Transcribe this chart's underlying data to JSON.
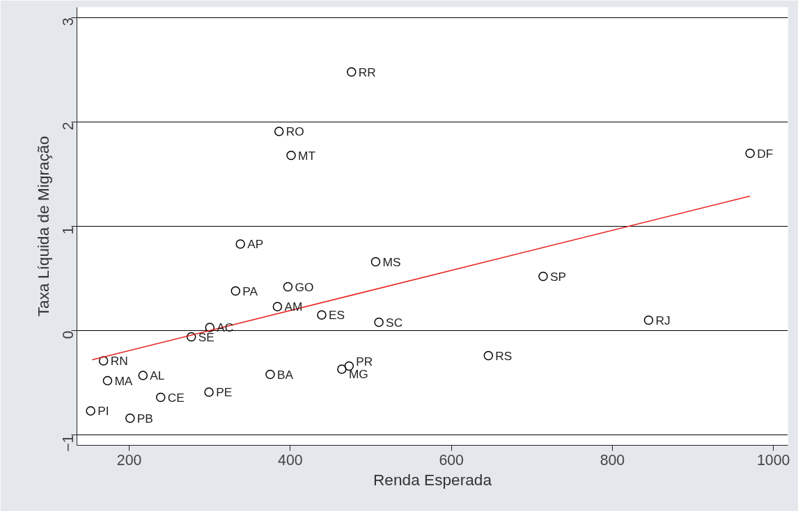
{
  "chart_data": {
    "type": "scatter",
    "xlabel": "Renda Esperada",
    "ylabel": "Taxa Líquida de Migração",
    "xlim": [
      135,
      1018
    ],
    "ylim": [
      -1.1,
      3.1
    ],
    "xticks": [
      200,
      400,
      600,
      800,
      1000
    ],
    "yticks": [
      -1,
      0,
      1,
      2,
      3
    ],
    "grid": "y",
    "marker": "circle",
    "series": [
      {
        "color": "#000000",
        "x": [
          476,
          386,
          401,
          971,
          338,
          506,
          714,
          397,
          332,
          384,
          439,
          510,
          845,
          300,
          277,
          168,
          217,
          173,
          375,
          473,
          464,
          646,
          239,
          299,
          152,
          201
        ],
        "values": [
          2.48,
          1.91,
          1.68,
          1.7,
          0.83,
          0.66,
          0.52,
          0.42,
          0.38,
          0.23,
          0.15,
          0.08,
          0.1,
          0.03,
          -0.06,
          -0.29,
          -0.43,
          -0.48,
          -0.42,
          -0.34,
          -0.37,
          -0.24,
          -0.64,
          -0.59,
          -0.77,
          -0.84
        ],
        "value_labels": [
          "RR",
          "RO",
          "MT",
          "DF",
          "AP",
          "MS",
          "SP",
          "GO",
          "PA",
          "AM",
          "ES",
          "SC",
          "RJ",
          "AC",
          "SE",
          "RN",
          "AL",
          "MA",
          "BA",
          "PR",
          "MG",
          "RS",
          "CE",
          "PE",
          "PI",
          "PB"
        ]
      },
      {
        "type": "line",
        "marker": "none",
        "color": "#e8201e",
        "x": [
          154,
          971
        ],
        "values": [
          -0.28,
          1.29
        ]
      }
    ]
  }
}
